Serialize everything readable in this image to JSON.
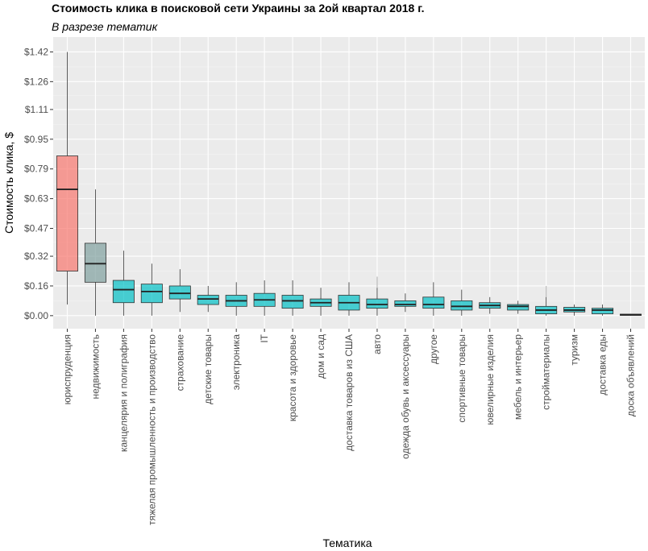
{
  "chart_data": {
    "type": "boxplot",
    "title": "Стоимость клика в поисковой сети Украины за 2ой квартал 2018 г.",
    "subtitle": "В разрезе тематик",
    "xlabel": "Тематика",
    "ylabel": "Стоимость клика, $",
    "y_ticks": [
      0.0,
      0.16,
      0.32,
      0.47,
      0.63,
      0.79,
      0.95,
      1.11,
      1.26,
      1.42
    ],
    "y_tick_labels": [
      "$0.00",
      "$0.16",
      "$0.32",
      "$0.47",
      "$0.63",
      "$0.79",
      "$0.95",
      "$1.11",
      "$1.26",
      "$1.42"
    ],
    "ylim": [
      -0.07,
      1.5
    ],
    "colors": {
      "high": "#F8766D",
      "mid": "#7F9F9E",
      "low": "#00BFC4",
      "panel": "#EBEBEB",
      "grid": "#FFFFFF"
    },
    "categories": [
      "юриспруденция",
      "недвижимость",
      "канцелярия и полиграфия",
      "тяжелая промышленность и производство",
      "страхование",
      "детские товары",
      "электроника",
      "IT",
      "красота и здоровье",
      "дом и сад",
      "доставка товаров из США",
      "авто",
      "одежда обувь и аксессуары",
      "другое",
      "спортивные товары",
      "ювелирные изделия",
      "мебель и интерьер",
      "стройматериалы",
      "туризм",
      "доставка еды",
      "доска объявлений"
    ],
    "boxes": [
      {
        "min": 0.06,
        "q1": 0.24,
        "median": 0.68,
        "q3": 0.86,
        "max": 1.42,
        "group": "high"
      },
      {
        "min": 0.0,
        "q1": 0.18,
        "median": 0.28,
        "q3": 0.39,
        "max": 0.68,
        "group": "mid"
      },
      {
        "min": 0.0,
        "q1": 0.07,
        "median": 0.14,
        "q3": 0.19,
        "max": 0.35,
        "group": "low"
      },
      {
        "min": 0.0,
        "q1": 0.07,
        "median": 0.13,
        "q3": 0.17,
        "max": 0.28,
        "group": "low"
      },
      {
        "min": 0.02,
        "q1": 0.09,
        "median": 0.12,
        "q3": 0.16,
        "max": 0.25,
        "group": "low"
      },
      {
        "min": 0.02,
        "q1": 0.06,
        "median": 0.09,
        "q3": 0.11,
        "max": 0.16,
        "group": "low"
      },
      {
        "min": 0.0,
        "q1": 0.05,
        "median": 0.08,
        "q3": 0.11,
        "max": 0.18,
        "group": "low"
      },
      {
        "min": 0.0,
        "q1": 0.05,
        "median": 0.085,
        "q3": 0.12,
        "max": 0.19,
        "group": "low"
      },
      {
        "min": 0.0,
        "q1": 0.04,
        "median": 0.08,
        "q3": 0.11,
        "max": 0.19,
        "group": "low"
      },
      {
        "min": 0.0,
        "q1": 0.05,
        "median": 0.07,
        "q3": 0.09,
        "max": 0.15,
        "group": "low"
      },
      {
        "min": 0.0,
        "q1": 0.03,
        "median": 0.07,
        "q3": 0.11,
        "max": 0.18,
        "group": "low"
      },
      {
        "min": 0.0,
        "q1": 0.04,
        "median": 0.06,
        "q3": 0.09,
        "max": 0.15,
        "outlier_max": 0.21,
        "group": "low"
      },
      {
        "min": 0.02,
        "q1": 0.05,
        "median": 0.06,
        "q3": 0.08,
        "max": 0.12,
        "group": "low"
      },
      {
        "min": 0.0,
        "q1": 0.04,
        "median": 0.06,
        "q3": 0.1,
        "max": 0.18,
        "group": "low"
      },
      {
        "min": 0.0,
        "q1": 0.03,
        "median": 0.05,
        "q3": 0.08,
        "max": 0.14,
        "group": "low"
      },
      {
        "min": 0.01,
        "q1": 0.04,
        "median": 0.055,
        "q3": 0.07,
        "max": 0.1,
        "group": "low"
      },
      {
        "min": 0.01,
        "q1": 0.03,
        "median": 0.05,
        "q3": 0.06,
        "max": 0.08,
        "group": "low"
      },
      {
        "min": 0.0,
        "q1": 0.01,
        "median": 0.03,
        "q3": 0.05,
        "max": 0.1,
        "outlier_max": 0.16,
        "group": "low"
      },
      {
        "min": 0.0,
        "q1": 0.02,
        "median": 0.03,
        "q3": 0.045,
        "max": 0.06,
        "group": "low"
      },
      {
        "min": 0.0,
        "q1": 0.01,
        "median": 0.03,
        "q3": 0.04,
        "max": 0.06,
        "group": "low"
      },
      {
        "min": 0.0,
        "q1": 0.003,
        "median": 0.005,
        "q3": 0.008,
        "max": 0.01,
        "group": "low"
      }
    ]
  }
}
